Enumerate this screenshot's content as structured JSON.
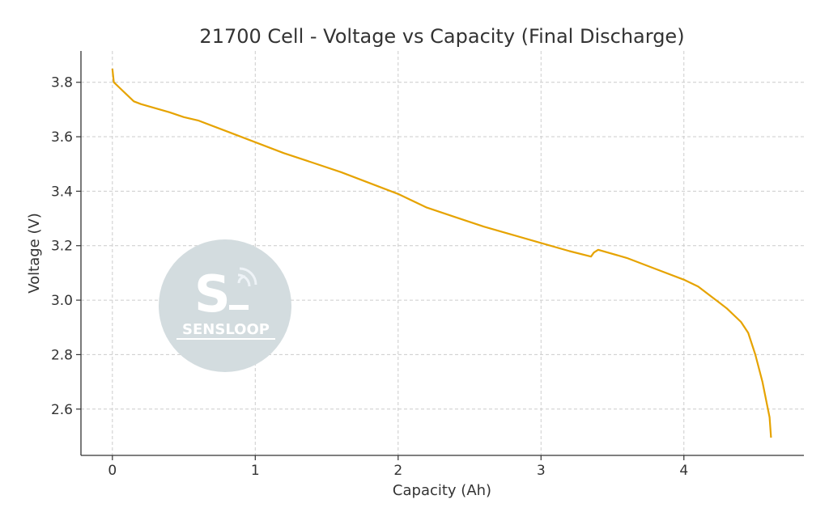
{
  "chart_data": {
    "type": "line",
    "title": "21700 Cell - Voltage vs Capacity (Final Discharge)",
    "xlabel": "Capacity (Ah)",
    "ylabel": "Voltage (V)",
    "xlim": [
      -0.22,
      4.84
    ],
    "ylim": [
      2.43,
      3.915
    ],
    "xticks": [
      0,
      1,
      2,
      3,
      4
    ],
    "xtick_labels": [
      "0",
      "1",
      "2",
      "3",
      "4"
    ],
    "yticks": [
      2.6,
      2.8,
      3.0,
      3.2,
      3.4,
      3.6,
      3.8
    ],
    "ytick_labels": [
      "2.6",
      "2.8",
      "3.0",
      "3.2",
      "3.4",
      "3.6",
      "3.8"
    ],
    "grid": true,
    "color": "#e6a300",
    "series": [
      {
        "x": [
          0,
          0.01,
          0.05,
          0.1,
          0.15,
          0.2,
          0.4,
          0.5,
          0.6,
          0.8,
          1.0,
          1.2,
          1.4,
          1.6,
          1.8,
          2.0,
          2.2,
          2.4,
          2.6,
          2.8,
          3.0,
          3.2,
          3.35,
          3.37,
          3.4,
          3.6,
          3.8,
          4.0,
          4.1,
          4.2,
          4.3,
          4.4,
          4.45,
          4.5,
          4.55,
          4.6,
          4.61
        ],
        "y": [
          3.85,
          3.8,
          3.78,
          3.755,
          3.73,
          3.72,
          3.69,
          3.672,
          3.66,
          3.62,
          3.58,
          3.54,
          3.505,
          3.47,
          3.43,
          3.39,
          3.34,
          3.305,
          3.27,
          3.24,
          3.21,
          3.18,
          3.16,
          3.175,
          3.185,
          3.155,
          3.115,
          3.075,
          3.05,
          3.01,
          2.97,
          2.92,
          2.88,
          2.8,
          2.7,
          2.57,
          2.495
        ]
      }
    ]
  },
  "watermark": {
    "text": "SENSLOOP",
    "color": "#d3dcdf"
  }
}
